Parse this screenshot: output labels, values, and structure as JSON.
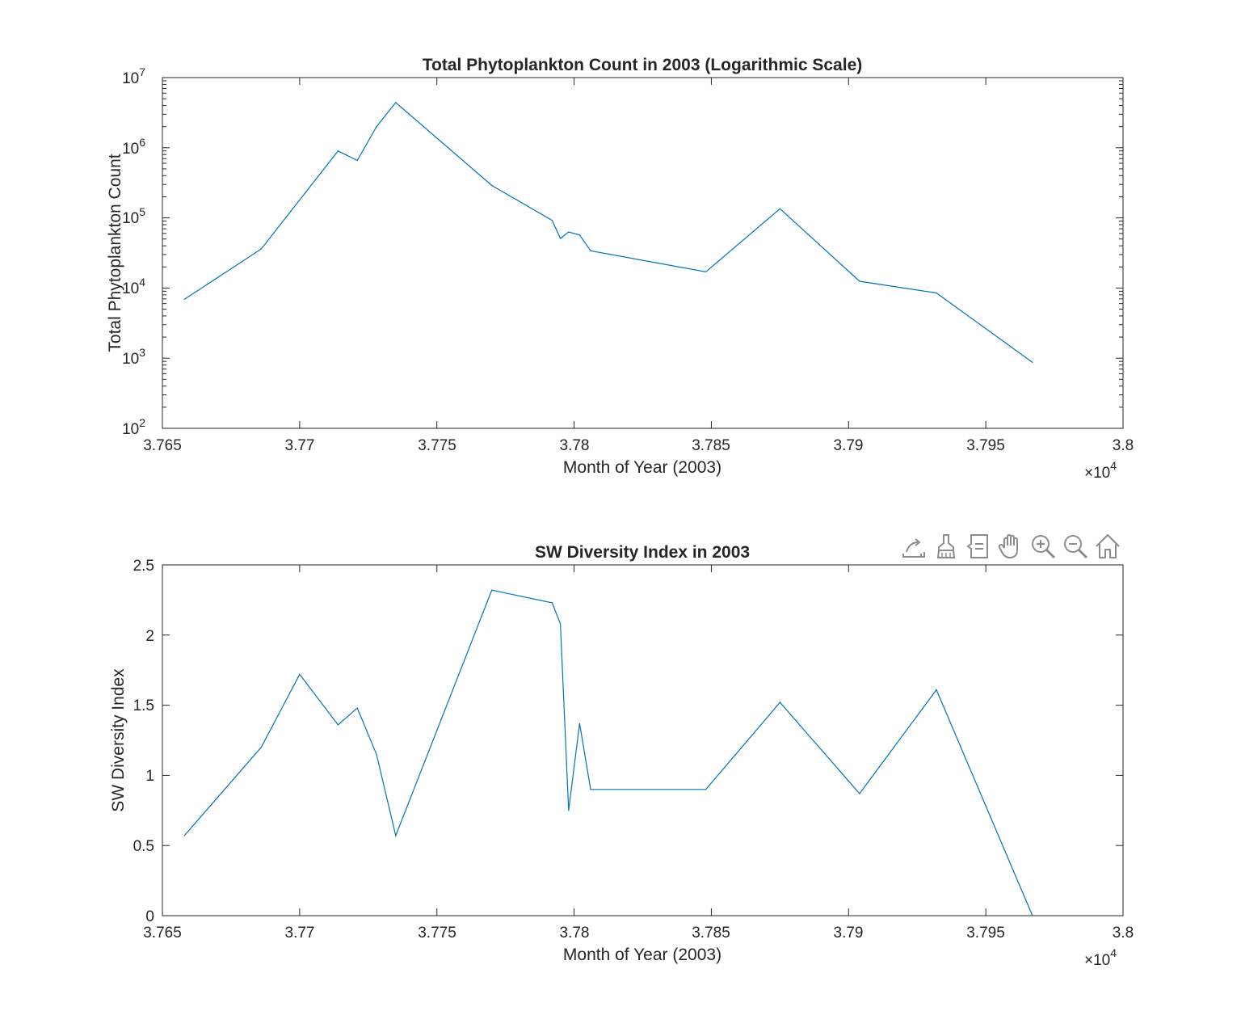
{
  "colors": {
    "line": "#0072BD",
    "axes": "#262626",
    "icon": "#8c8c8c"
  },
  "toolbar": {
    "icons": [
      "export-icon",
      "brush-icon",
      "datatip-icon",
      "pan-hand-icon",
      "zoom-in-icon",
      "zoom-out-icon",
      "home-icon"
    ]
  },
  "chart_data": [
    {
      "type": "line",
      "title": "Total Phytoplankton Count in 2003 (Logarithmic Scale)",
      "xlabel": "Month of Year (2003)",
      "ylabel": "Total Phytoplankton Count",
      "yscale": "log",
      "xlim": [
        37650,
        38000
      ],
      "ylim": [
        100,
        10000000
      ],
      "x_ticks": [
        37650,
        37700,
        37750,
        37800,
        37850,
        37900,
        37950,
        38000
      ],
      "x_tick_labels": [
        "3.765",
        "3.77",
        "3.775",
        "3.78",
        "3.785",
        "3.79",
        "3.795",
        "3.8"
      ],
      "x_exponent_base": "×10",
      "x_exponent_power": "4",
      "y_tick_labels": [
        {
          "base": "10",
          "exp": "2"
        },
        {
          "base": "10",
          "exp": "3"
        },
        {
          "base": "10",
          "exp": "4"
        },
        {
          "base": "10",
          "exp": "5"
        },
        {
          "base": "10",
          "exp": "6"
        },
        {
          "base": "10",
          "exp": "7"
        }
      ],
      "grid": false,
      "series": [
        {
          "x": [
            37658,
            37686,
            37714,
            37721,
            37728,
            37735,
            37770,
            37792,
            37795,
            37798,
            37802,
            37806,
            37848,
            37875,
            37904,
            37932,
            37967
          ],
          "values": [
            6900,
            36000,
            900000,
            660000,
            2000000,
            4400000,
            290000,
            92000,
            51000,
            63000,
            57000,
            34000,
            17000,
            135000,
            12500,
            8500,
            870
          ]
        }
      ]
    },
    {
      "type": "line",
      "title": "SW Diversity Index in 2003",
      "xlabel": "Month of Year (2003)",
      "ylabel": "SW Diversity Index",
      "xlim": [
        37650,
        38000
      ],
      "ylim": [
        0,
        2.5
      ],
      "x_ticks": [
        37650,
        37700,
        37750,
        37800,
        37850,
        37900,
        37950,
        38000
      ],
      "x_tick_labels": [
        "3.765",
        "3.77",
        "3.775",
        "3.78",
        "3.785",
        "3.79",
        "3.795",
        "3.8"
      ],
      "x_exponent_base": "×10",
      "x_exponent_power": "4",
      "y_ticks": [
        0,
        0.5,
        1,
        1.5,
        2,
        2.5
      ],
      "y_tick_labels": [
        "0",
        "0.5",
        "1",
        "1.5",
        "2",
        "2.5"
      ],
      "grid": false,
      "series": [
        {
          "x": [
            37658,
            37686,
            37700,
            37714,
            37721,
            37728,
            37735,
            37770,
            37792,
            37795,
            37798,
            37802,
            37806,
            37848,
            37875,
            37904,
            37932,
            37967
          ],
          "values": [
            0.57,
            1.2,
            1.72,
            1.36,
            1.48,
            1.15,
            0.57,
            2.32,
            2.23,
            2.08,
            0.75,
            1.37,
            0.9,
            0.9,
            1.52,
            0.87,
            1.61,
            0.0
          ]
        }
      ]
    }
  ]
}
